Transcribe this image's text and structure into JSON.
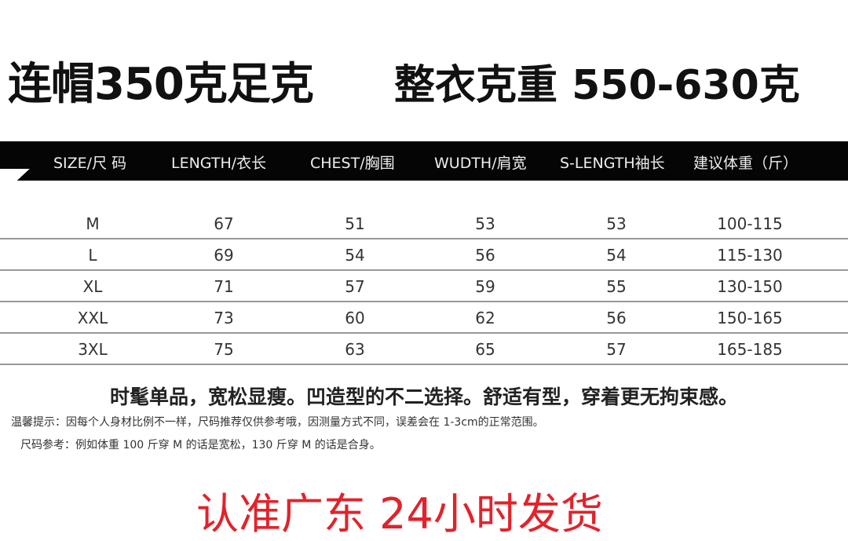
{
  "title": {
    "left": "连帽350克足克",
    "right": "整衣克重 550-630克"
  },
  "table": {
    "headers": [
      "SIZE/尺 码",
      "LENGTH/衣长",
      "CHEST/胸围",
      "WUDTH/肩宽",
      "S-LENGTH袖长",
      "建议体重（斤）"
    ],
    "rows": [
      [
        "M",
        "67",
        "51",
        "53",
        "53",
        "100-115"
      ],
      [
        "L",
        "69",
        "54",
        "56",
        "54",
        "115-130"
      ],
      [
        "XL",
        "71",
        "57",
        "59",
        "55",
        "130-150"
      ],
      [
        "XXL",
        "73",
        "60",
        "62",
        "56",
        "150-165"
      ],
      [
        "3XL",
        "75",
        "63",
        "65",
        "57",
        "165-185"
      ]
    ]
  },
  "slogan": "时髦单品，宽松显瘦。凹造型的不二选择。舒适有型，穿着更无拘束感。",
  "notes": [
    "温馨提示：因每个人身材比例不一样，尺码推荐仅供参考哦，因测量方式不同，误差会在 1-3cm的正常范围。",
    "尺码参考：例如体重 100 斤穿 M 的话是宽松，130 斤穿 M 的话是合身。"
  ],
  "shipping": "认准广东 24小时发货",
  "colors": {
    "header_bg": "#050505",
    "shipping_text": "#e3222a"
  }
}
